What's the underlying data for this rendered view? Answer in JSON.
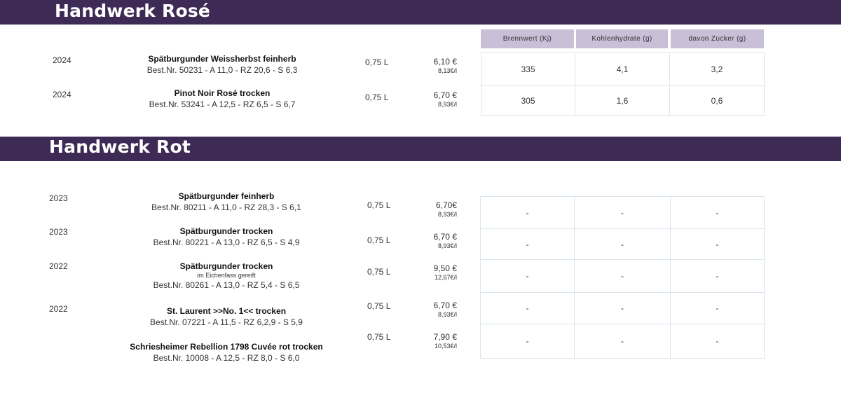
{
  "rose": {
    "title": "Handwerk Rosé",
    "headers": [
      "Brennwert (Kj)",
      "Kohlenhydrate (g)",
      "davon Zucker (g)"
    ],
    "items": [
      {
        "year": "2024",
        "name": "Spätburgunder Weissherbst feinherb",
        "order": "Best.Nr. 50231 - A 11,0 - RZ 20,6  - S 6,3",
        "volume": "0,75 L",
        "price": "6,10 €",
        "per_liter": "8,13€/l",
        "nutrition": [
          "335",
          "4,1",
          "3,2"
        ]
      },
      {
        "year": "2024",
        "name": "Pinot Noir Rosé trocken",
        "order": "Best.Nr. 53241 - A 12,5 - RZ 6,5 - S 6,7",
        "volume": "0,75 L",
        "price": "6,70 €",
        "per_liter": "8,93€/l",
        "nutrition": [
          "305",
          "1,6",
          "0,6"
        ]
      }
    ]
  },
  "rot": {
    "title": "Handwerk Rot",
    "items": [
      {
        "year": "2023",
        "name": "Spätburgunder feinherb",
        "note": "",
        "order": "Best.Nr. 80211 - A 11,0 - RZ 28,3  - S 6,1",
        "volume": "0,75 L",
        "price": "6,70€",
        "per_liter": "8,93€/l",
        "nutrition": [
          "-",
          "-",
          "-"
        ]
      },
      {
        "year": "2023",
        "name": "Spätburgunder trocken",
        "note": "",
        "order": "Best.Nr. 80221 - A 13,0 - RZ 6,5 - S 4,9",
        "volume": "0,75 L",
        "price": "6,70 €",
        "per_liter": "8,93€/l",
        "nutrition": [
          "-",
          "-",
          "-"
        ]
      },
      {
        "year": "2022",
        "name": "Spätburgunder trocken",
        "note": "im Eichenfass gereift",
        "order": "Best.Nr. 80261 - A 13,0 - RZ 5,4 - S 6,5",
        "volume": "0,75 L",
        "price": "9,50 €",
        "per_liter": "12,67€/l",
        "nutrition": [
          "-",
          "-",
          "-"
        ]
      },
      {
        "year": "2022",
        "name": "St. Laurent >>No. 1<< trocken",
        "note": "",
        "order": "Best.Nr. 07221 - A 11,5 - RZ 6,2,9 - S 5,9",
        "volume": "0,75 L",
        "price": "6,70 €",
        "per_liter": "8,93€/l",
        "nutrition": [
          "-",
          "-",
          "-"
        ]
      },
      {
        "year": "",
        "name": "Schriesheimer Rebellion 1798 Cuvée rot trocken",
        "note": "",
        "order": "Best.Nr. 10008 - A 12,5 - RZ 8,0 - S 6,0",
        "volume": "0,75  L",
        "price": "7,90 €",
        "per_liter": "10,53€/l",
        "nutrition": [
          "-",
          "-",
          "-"
        ]
      }
    ]
  }
}
